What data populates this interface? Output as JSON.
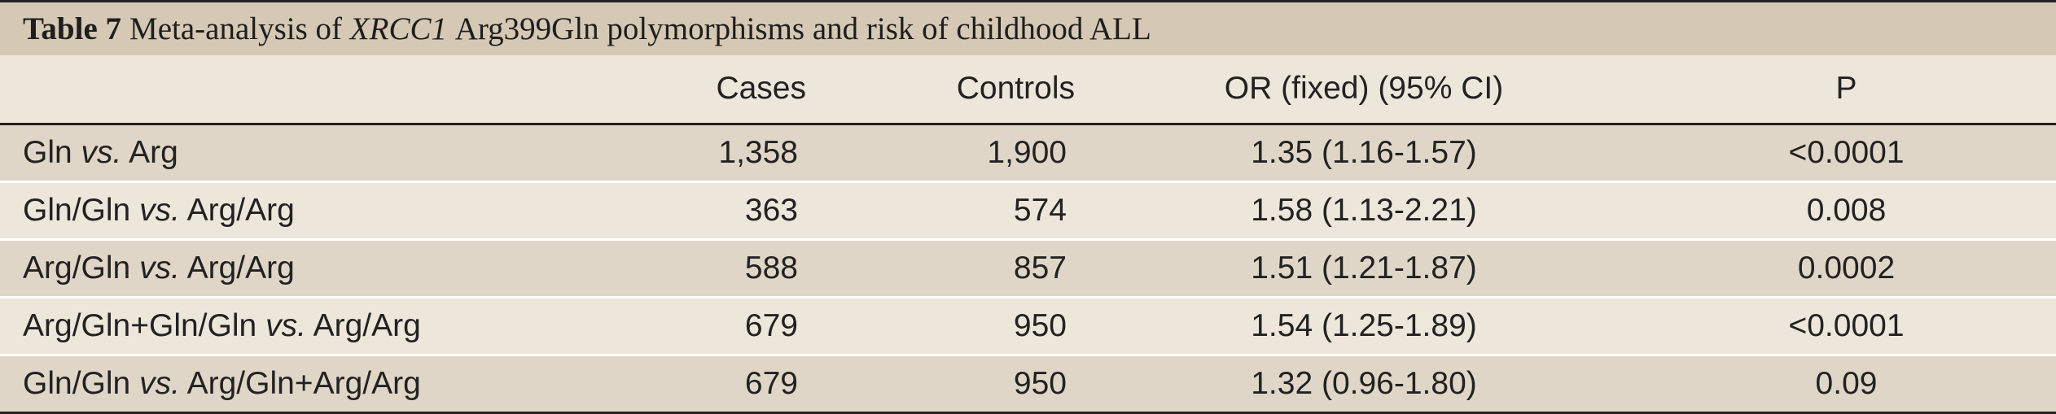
{
  "caption": {
    "label": "Table 7",
    "text_before": "Meta-analysis of",
    "gene": "XRCC1",
    "text_after": "Arg399Gln polymorphisms and risk of childhood ALL"
  },
  "columns": [
    "",
    "Cases",
    "Controls",
    "OR (fixed) (95% CI)",
    "P"
  ],
  "rows": [
    {
      "left": "Gln",
      "vs": "vs.",
      "right": "Arg",
      "cases": "1,358",
      "controls": "1,900",
      "or": "1.35 (1.16-1.57)",
      "p": "<0.0001"
    },
    {
      "left": "Gln/Gln",
      "vs": "vs.",
      "right": "Arg/Arg",
      "cases": "363",
      "controls": "574",
      "or": "1.58 (1.13-2.21)",
      "p": "0.008"
    },
    {
      "left": "Arg/Gln",
      "vs": "vs.",
      "right": "Arg/Arg",
      "cases": "588",
      "controls": "857",
      "or": "1.51 (1.21-1.87)",
      "p": "0.0002"
    },
    {
      "left": "Arg/Gln+Gln/Gln",
      "vs": "vs.",
      "right": "Arg/Arg",
      "cases": "679",
      "controls": "950",
      "or": "1.54 (1.25-1.89)",
      "p": "<0.0001"
    },
    {
      "left": "Gln/Gln",
      "vs": "vs.",
      "right": "Arg/Gln+Arg/Arg",
      "cases": "679",
      "controls": "950",
      "or": "1.32 (0.96-1.80)",
      "p": "0.09"
    }
  ]
}
